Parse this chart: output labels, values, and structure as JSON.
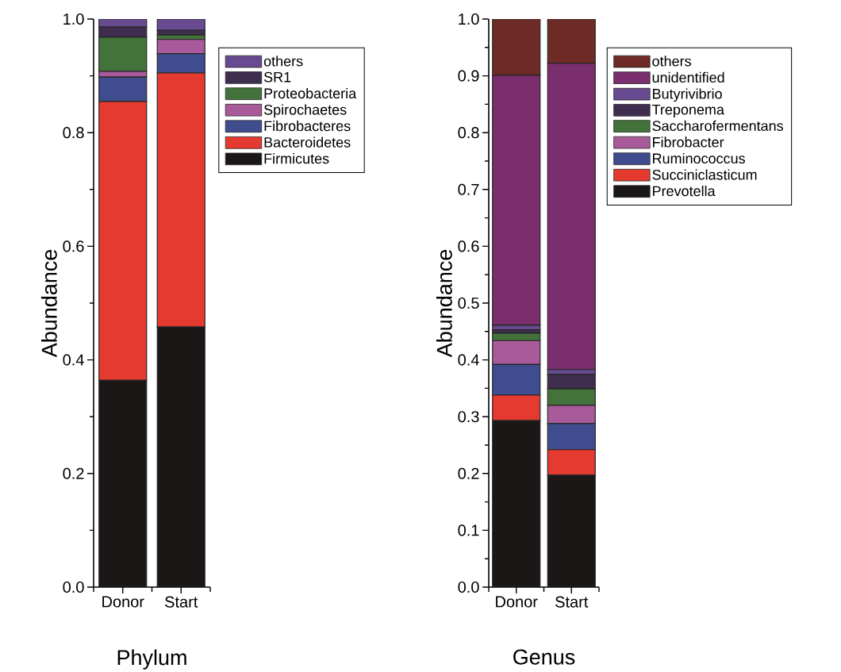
{
  "chart_data": [
    {
      "type": "bar",
      "stacked": true,
      "xlabel": "Phylum",
      "ylabel": "Abundance",
      "categories": [
        "Donor",
        "Start"
      ],
      "ylim": [
        0,
        1.0
      ],
      "yticks": [
        {
          "value": 0,
          "label": "0.0"
        },
        {
          "value": 0.2,
          "label": "0.2"
        },
        {
          "value": 0.4,
          "label": "0.4"
        },
        {
          "value": 0.6,
          "label": "0.6"
        },
        {
          "value": 0.8,
          "label": "0.8"
        },
        {
          "value": 1.0,
          "label": "1.0"
        }
      ],
      "grid": false,
      "legend": "right",
      "series": [
        {
          "name": "Firmicutes",
          "color": "#1a1716",
          "values": [
            0.364,
            0.458
          ]
        },
        {
          "name": "Bacteroidetes",
          "color": "#e53a30",
          "values": [
            0.491,
            0.447
          ]
        },
        {
          "name": "Fibrobacteres",
          "color": "#3f4d8f",
          "values": [
            0.043,
            0.034
          ]
        },
        {
          "name": "Spirochaetes",
          "color": "#a85a9a",
          "values": [
            0.01,
            0.025
          ]
        },
        {
          "name": "Proteobacteria",
          "color": "#43733a",
          "values": [
            0.06,
            0.008
          ]
        },
        {
          "name": "SR1",
          "color": "#3f2e4f",
          "values": [
            0.018,
            0.008
          ]
        },
        {
          "name": "others",
          "color": "#674a90",
          "values": [
            0.014,
            0.02
          ]
        }
      ]
    },
    {
      "type": "bar",
      "stacked": true,
      "xlabel": "Genus",
      "ylabel": "Abundance",
      "categories": [
        "Donor",
        "Start"
      ],
      "ylim": [
        0,
        1.0
      ],
      "yticks": [
        {
          "value": 0,
          "label": "0.0"
        },
        {
          "value": 0.1,
          "label": "0.1"
        },
        {
          "value": 0.2,
          "label": "0.2"
        },
        {
          "value": 0.3,
          "label": "0.3"
        },
        {
          "value": 0.4,
          "label": "0.4"
        },
        {
          "value": 0.5,
          "label": "0.5"
        },
        {
          "value": 0.6,
          "label": "0.6"
        },
        {
          "value": 0.7,
          "label": "0.7"
        },
        {
          "value": 0.8,
          "label": "0.8"
        },
        {
          "value": 0.9,
          "label": "0.9"
        },
        {
          "value": 1.0,
          "label": "1.0"
        }
      ],
      "grid": false,
      "legend": "right",
      "series": [
        {
          "name": "Prevotella",
          "color": "#1a1716",
          "values": [
            0.293,
            0.197
          ]
        },
        {
          "name": "Succiniclasticum",
          "color": "#e53a30",
          "values": [
            0.045,
            0.045
          ]
        },
        {
          "name": "Ruminococcus",
          "color": "#3f4d8f",
          "values": [
            0.054,
            0.046
          ]
        },
        {
          "name": "Fibrobacter",
          "color": "#a85a9a",
          "values": [
            0.042,
            0.032
          ]
        },
        {
          "name": "Saccharofermentans",
          "color": "#43733a",
          "values": [
            0.013,
            0.029
          ]
        },
        {
          "name": "Treponema",
          "color": "#3f2e4f",
          "values": [
            0.006,
            0.025
          ]
        },
        {
          "name": "Butyrivibrio",
          "color": "#674a90",
          "values": [
            0.008,
            0.009
          ]
        },
        {
          "name": "unidentified",
          "color": "#7a2e6e",
          "values": [
            0.44,
            0.539
          ]
        },
        {
          "name": "others",
          "color": "#6e2b26",
          "values": [
            0.099,
            0.078
          ]
        }
      ]
    }
  ]
}
